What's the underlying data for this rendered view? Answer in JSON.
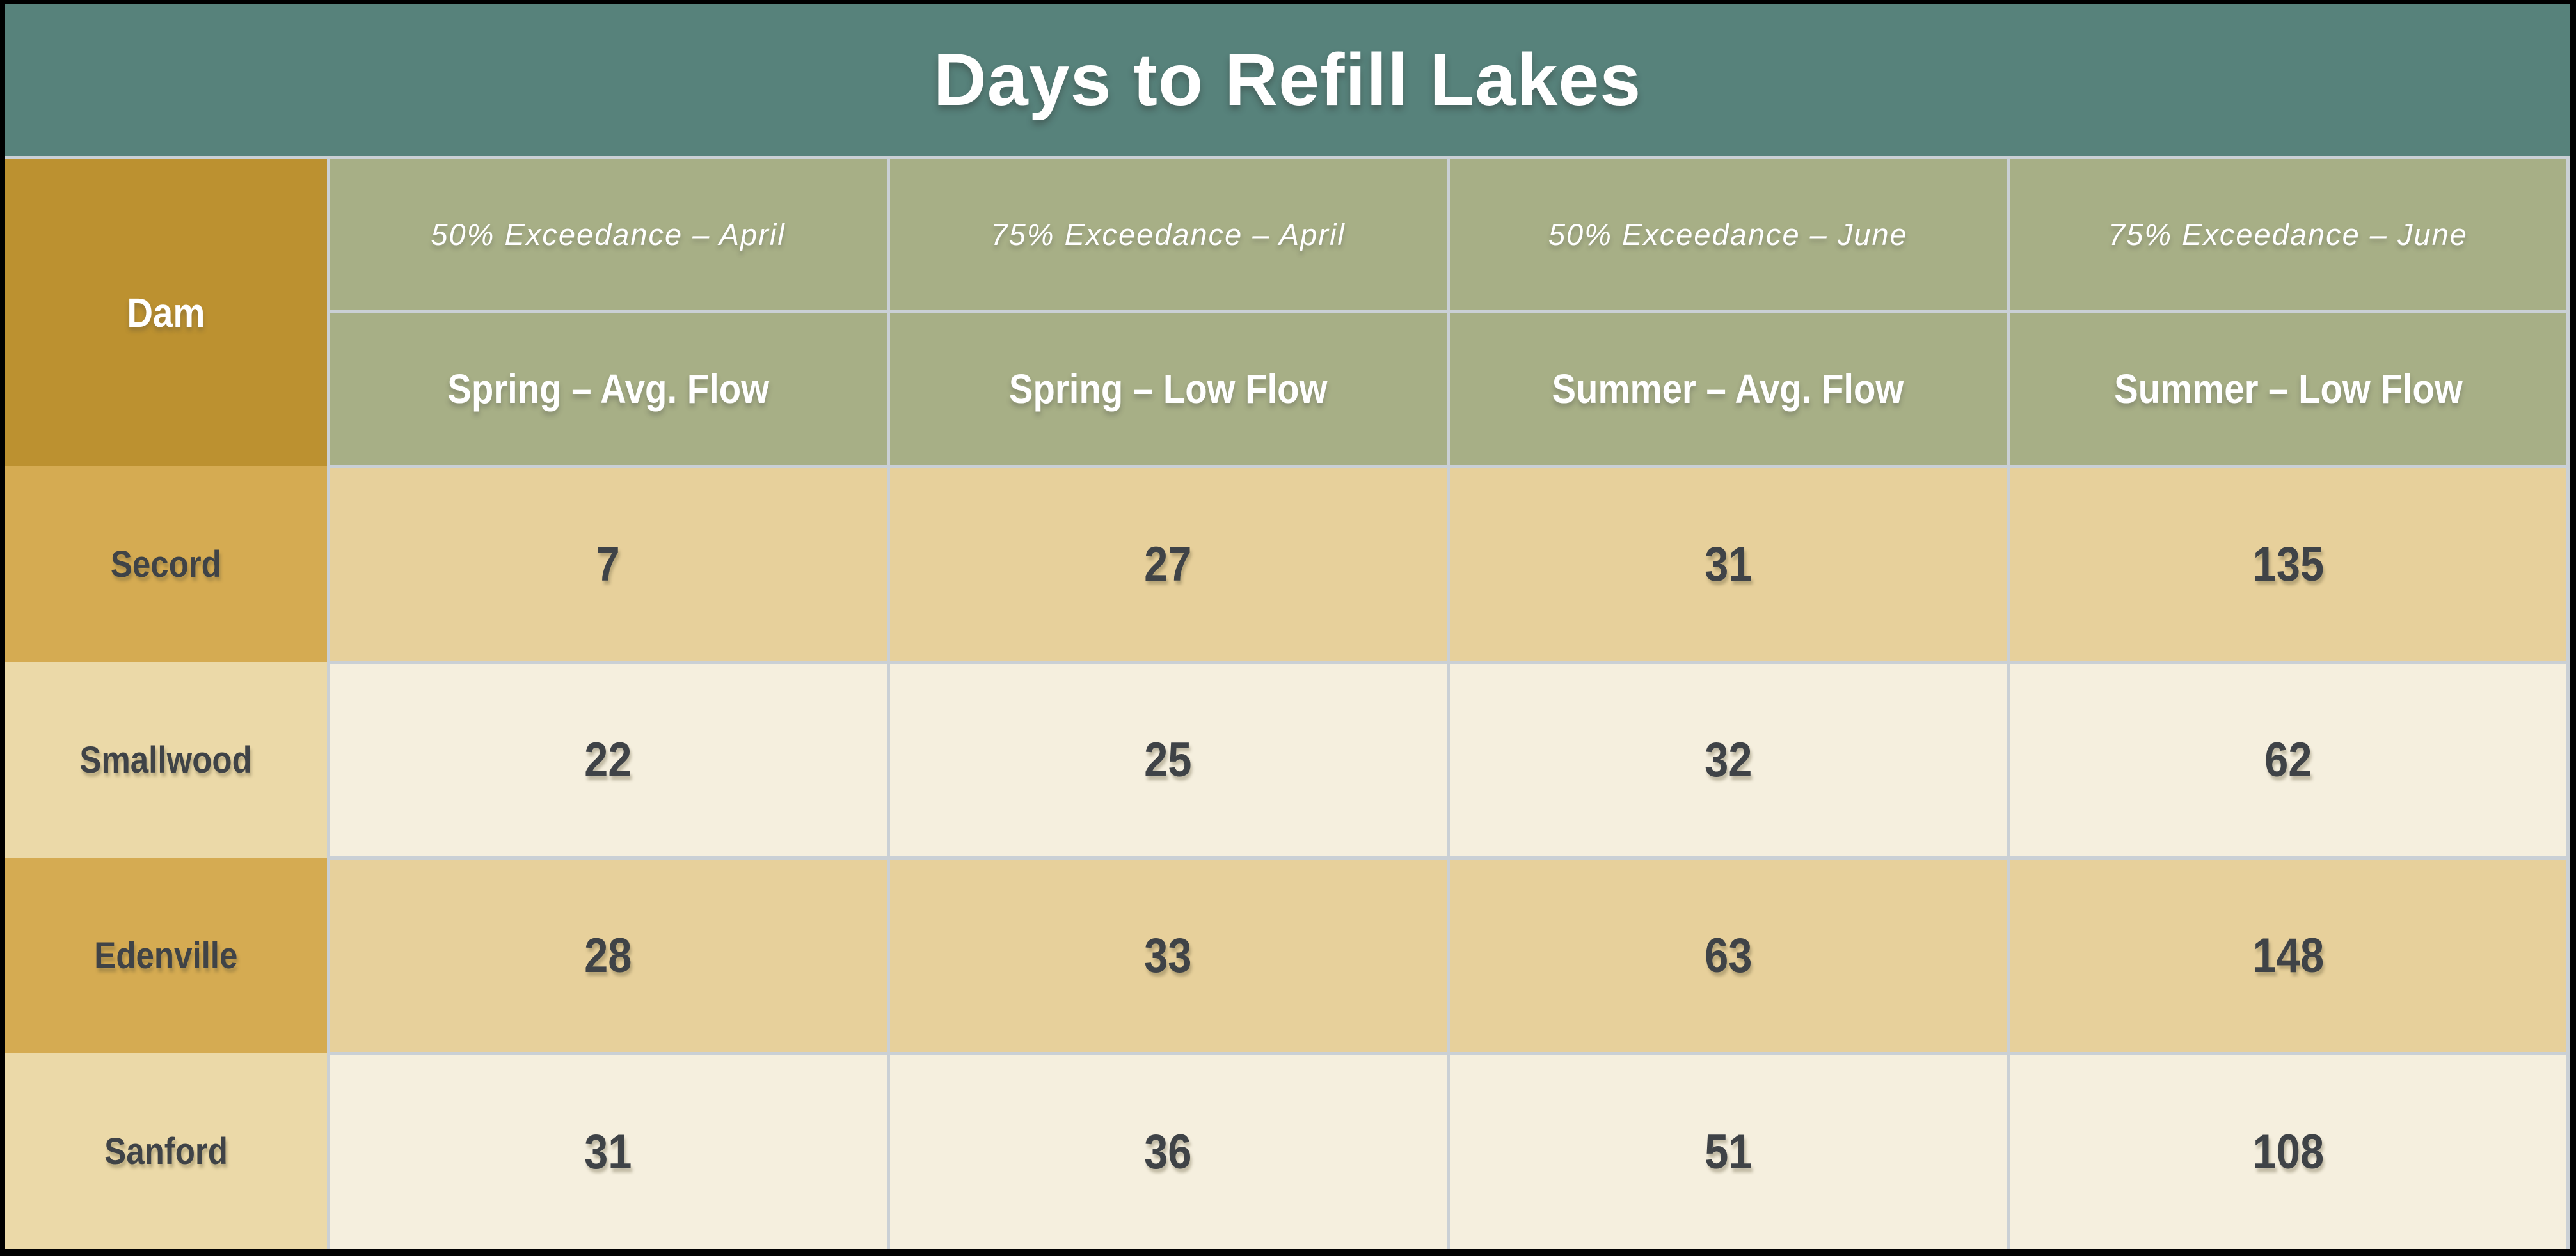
{
  "title": "Days to Refill Lakes",
  "table": {
    "corner_label": "Dam",
    "column_groups": [
      {
        "exceedance": "50% Exceedance – April",
        "season": "Spring – Avg. Flow"
      },
      {
        "exceedance": "75% Exceedance – April",
        "season": "Spring – Low Flow"
      },
      {
        "exceedance": "50% Exceedance – June",
        "season": "Summer – Avg. Flow"
      },
      {
        "exceedance": "75% Exceedance – June",
        "season": "Summer – Low Flow"
      }
    ],
    "rows": [
      {
        "dam": "Secord",
        "values": [
          "7",
          "27",
          "31",
          "135"
        ]
      },
      {
        "dam": "Smallwood",
        "values": [
          "22",
          "25",
          "32",
          "62"
        ]
      },
      {
        "dam": "Edenville",
        "values": [
          "28",
          "33",
          "63",
          "148"
        ]
      },
      {
        "dam": "Sanford",
        "values": [
          "31",
          "36",
          "51",
          "108"
        ]
      }
    ]
  },
  "colors": {
    "title_band": "#57827B",
    "header_olive": "#A7AF86",
    "corner_gold": "#BC9130",
    "label_gold_dark": "#D5AB52",
    "label_gold_pale": "#EBD9A8",
    "cell_tan": "#E7D09B",
    "cell_cream": "#F5EFDE",
    "grid_border": "#CAD0D5",
    "frame_black": "#000000",
    "text_dark": "#3F4347",
    "text_white": "#FFFFFF"
  },
  "chart_data": {
    "type": "table",
    "title": "Days to Refill Lakes",
    "row_header": "Dam",
    "columns": [
      "50% Exceedance – April (Spring – Avg. Flow)",
      "75% Exceedance – April (Spring – Low Flow)",
      "50% Exceedance – June (Summer – Avg. Flow)",
      "75% Exceedance – June (Summer – Low Flow)"
    ],
    "rows": [
      {
        "dam": "Secord",
        "days_to_refill": [
          7,
          27,
          31,
          135
        ]
      },
      {
        "dam": "Smallwood",
        "days_to_refill": [
          22,
          25,
          32,
          62
        ]
      },
      {
        "dam": "Edenville",
        "days_to_refill": [
          28,
          33,
          63,
          148
        ]
      },
      {
        "dam": "Sanford",
        "days_to_refill": [
          31,
          36,
          51,
          108
        ]
      }
    ]
  }
}
